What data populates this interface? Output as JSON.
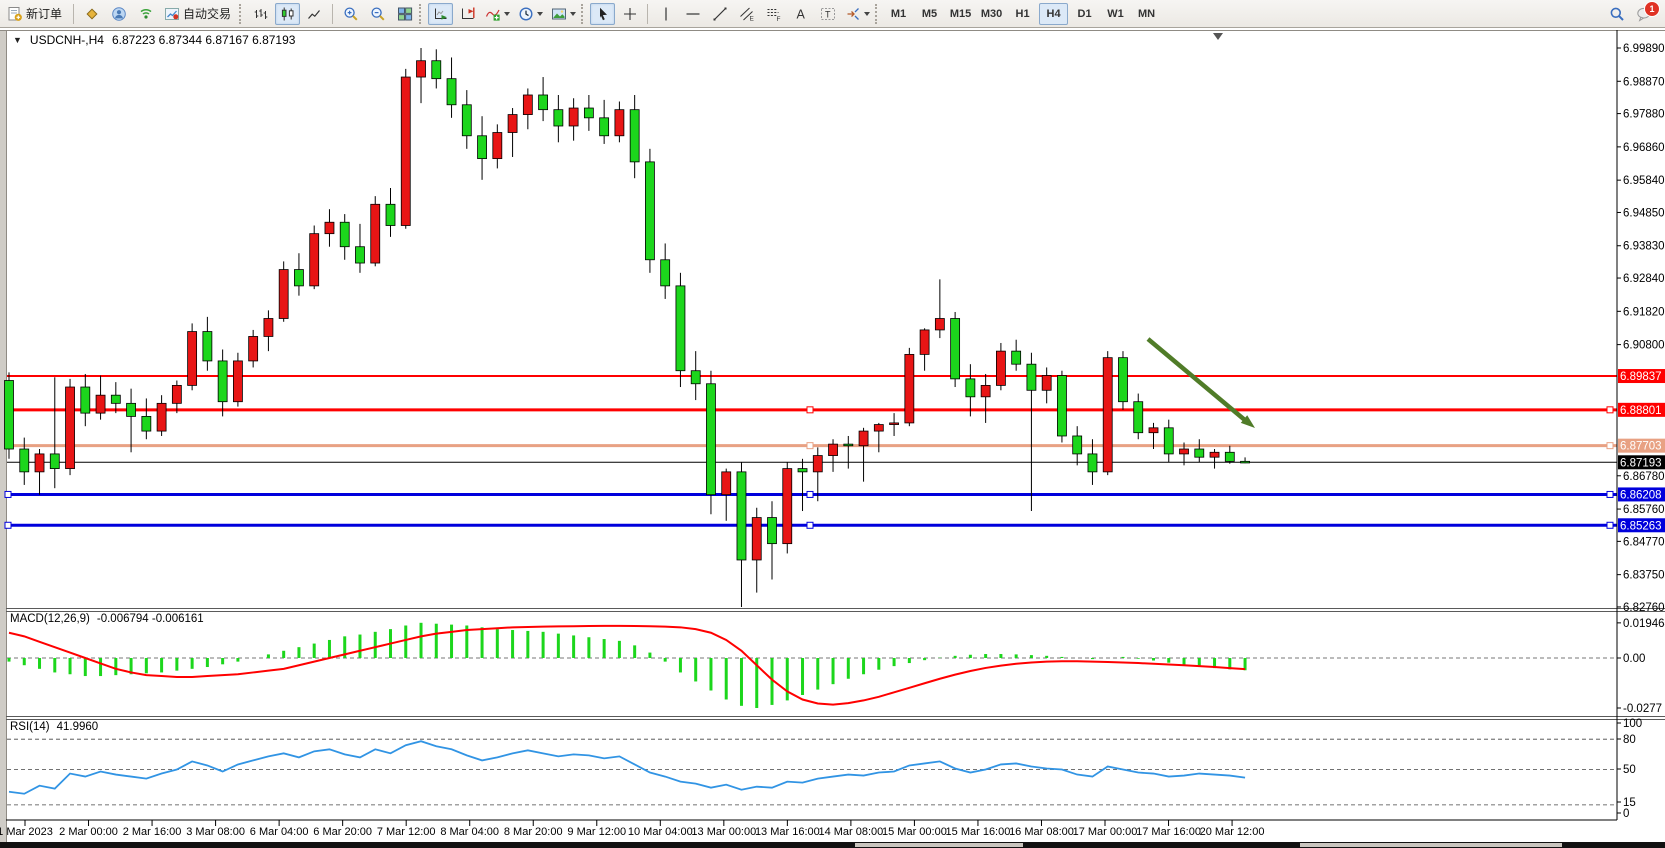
{
  "app": {
    "notification_count": "1"
  },
  "toolbar": {
    "new_order_label": "新订单",
    "auto_trading_label": "自动交易",
    "timeframes": [
      "M1",
      "M5",
      "M15",
      "M30",
      "H1",
      "H4",
      "D1",
      "W1",
      "MN"
    ],
    "active_timeframe": "H4"
  },
  "chart": {
    "collapse_icon": "▼",
    "title": "USDCNH-,H4",
    "ohlc": "6.87223 6.87344 6.87167 6.87193",
    "price_axis_ticks": [
      "6.99890",
      "6.98870",
      "6.97880",
      "6.96860",
      "6.95840",
      "6.94850",
      "6.93830",
      "6.92840",
      "6.91820",
      "6.90800",
      "6.86780",
      "6.85760",
      "6.84770",
      "6.83750",
      "6.82760"
    ],
    "levels": [
      {
        "label": "6.89837",
        "value": 6.89837,
        "color": "#FF0000",
        "width": 2,
        "handles": false
      },
      {
        "label": "6.88801",
        "value": 6.88801,
        "color": "#FF0000",
        "width": 3,
        "handles": true
      },
      {
        "label": "6.87703",
        "value": 6.87703,
        "color": "#E8A183",
        "width": 3,
        "handles": true
      },
      {
        "label": "6.87193",
        "value": 6.87193,
        "color": "#000000",
        "width": 1,
        "bid": true
      },
      {
        "label": "6.86208",
        "value": 6.86208,
        "color": "#0000DC",
        "width": 3,
        "handles": true
      },
      {
        "label": "6.85263",
        "value": 6.85263,
        "color": "#0000DC",
        "width": 3,
        "handles": true
      }
    ],
    "colors": {
      "bull": "#E81515",
      "bear": "#1CD61C",
      "wick": "#000000",
      "macd_hist": "#1CD61C",
      "macd_signal": "#FF0000",
      "rsi_line": "#3194E4",
      "arrow": "#507C28"
    }
  },
  "macd_panel": {
    "label": "MACD(12,26,9)",
    "values": "-0.006794 -0.006161",
    "axis": [
      "0.019464",
      "0.00",
      "-0.0277"
    ]
  },
  "rsi_panel": {
    "label": "RSI(14)",
    "value": "41.9960",
    "axis": [
      "100",
      "80",
      "50",
      "15",
      "0"
    ]
  },
  "chart_data": {
    "type": "candlestick",
    "symbol": "USDCNH-",
    "timeframe": "H4",
    "title": "USDCNH-,H4 6.87223 6.87344 6.87167 6.87193",
    "price_range": [
      6.8276,
      6.9989
    ],
    "up_color_note": "red = bullish, green = bearish (CN convention)",
    "time_labels": [
      "1 Mar 2023",
      "2 Mar 00:00",
      "2 Mar 16:00",
      "3 Mar 08:00",
      "6 Mar 04:00",
      "6 Mar 20:00",
      "7 Mar 12:00",
      "8 Mar 04:00",
      "8 Mar 20:00",
      "9 Mar 12:00",
      "10 Mar 04:00",
      "13 Mar 00:00",
      "13 Mar 16:00",
      "14 Mar 08:00",
      "15 Mar 00:00",
      "15 Mar 16:00",
      "16 Mar 08:00",
      "17 Mar 00:00",
      "17 Mar 16:00",
      "20 Mar 12:00"
    ],
    "candles": [
      [
        6.897,
        6.8995,
        6.873,
        6.876
      ],
      [
        6.876,
        6.8795,
        6.865,
        6.869
      ],
      [
        6.869,
        6.876,
        6.862,
        6.8745
      ],
      [
        6.8745,
        6.898,
        6.864,
        6.87
      ],
      [
        6.87,
        6.8975,
        6.868,
        6.895
      ],
      [
        6.895,
        6.899,
        6.883,
        6.887
      ],
      [
        6.887,
        6.8985,
        6.885,
        6.8925
      ],
      [
        6.8925,
        6.8965,
        6.887,
        6.89
      ],
      [
        6.89,
        6.8945,
        6.875,
        6.886
      ],
      [
        6.886,
        6.8915,
        6.879,
        6.8815
      ],
      [
        6.8815,
        6.8925,
        6.88,
        6.89
      ],
      [
        6.89,
        6.897,
        6.887,
        6.8955
      ],
      [
        6.8955,
        6.9145,
        6.894,
        6.912
      ],
      [
        6.912,
        6.9165,
        6.9,
        6.903
      ],
      [
        6.903,
        6.9065,
        6.886,
        6.8905
      ],
      [
        6.8905,
        6.9055,
        6.889,
        6.903
      ],
      [
        6.903,
        6.9125,
        6.901,
        6.9105
      ],
      [
        6.9105,
        6.9185,
        6.906,
        6.916
      ],
      [
        6.916,
        6.9335,
        6.915,
        6.931
      ],
      [
        6.931,
        6.936,
        6.923,
        6.926
      ],
      [
        6.926,
        6.9445,
        6.925,
        6.942
      ],
      [
        6.942,
        6.9495,
        6.938,
        6.9455
      ],
      [
        6.9455,
        6.948,
        6.934,
        6.938
      ],
      [
        6.938,
        6.945,
        6.93,
        6.933
      ],
      [
        6.933,
        6.9535,
        6.932,
        6.951
      ],
      [
        6.951,
        6.956,
        6.941,
        6.9445
      ],
      [
        6.9445,
        6.9925,
        6.9435,
        6.99
      ],
      [
        6.99,
        6.9989,
        6.982,
        6.995
      ],
      [
        6.995,
        6.9985,
        6.9865,
        6.9895
      ],
      [
        6.9895,
        6.996,
        6.9775,
        6.9815
      ],
      [
        6.9815,
        6.986,
        6.968,
        6.972
      ],
      [
        6.972,
        6.978,
        6.9585,
        6.965
      ],
      [
        6.965,
        6.9755,
        6.962,
        6.973
      ],
      [
        6.973,
        6.9805,
        6.9655,
        6.9785
      ],
      [
        6.9785,
        6.9865,
        6.974,
        6.9845
      ],
      [
        6.9845,
        6.99,
        6.9765,
        6.98
      ],
      [
        6.98,
        6.9845,
        6.97,
        6.975
      ],
      [
        6.975,
        6.9835,
        6.9705,
        6.9805
      ],
      [
        6.9805,
        6.9845,
        6.9735,
        6.9775
      ],
      [
        6.9775,
        6.983,
        6.9695,
        6.972
      ],
      [
        6.972,
        6.9825,
        6.97,
        6.98
      ],
      [
        6.98,
        6.9845,
        6.959,
        6.964
      ],
      [
        6.964,
        6.968,
        6.93,
        6.934
      ],
      [
        6.934,
        6.939,
        6.922,
        6.926
      ],
      [
        6.926,
        6.93,
        6.895,
        6.9
      ],
      [
        6.9,
        6.906,
        6.891,
        6.896
      ],
      [
        6.896,
        6.9,
        6.856,
        6.862
      ],
      [
        6.862,
        6.87,
        6.854,
        6.869
      ],
      [
        6.869,
        6.872,
        6.8276,
        6.842
      ],
      [
        6.842,
        6.858,
        6.832,
        6.855
      ],
      [
        6.855,
        6.86,
        6.836,
        6.847
      ],
      [
        6.847,
        6.872,
        6.844,
        6.87
      ],
      [
        6.87,
        6.873,
        6.857,
        6.869
      ],
      [
        6.869,
        6.8765,
        6.86,
        6.874
      ],
      [
        6.874,
        6.879,
        6.869,
        6.8775
      ],
      [
        6.8775,
        6.88,
        6.87,
        6.877
      ],
      [
        6.877,
        6.8825,
        6.866,
        6.8815
      ],
      [
        6.8815,
        6.884,
        6.875,
        6.8835
      ],
      [
        6.8835,
        6.887,
        6.88,
        6.884
      ],
      [
        6.884,
        6.907,
        6.883,
        6.905
      ],
      [
        6.905,
        6.913,
        6.9,
        6.9125
      ],
      [
        6.9125,
        6.928,
        6.91,
        6.916
      ],
      [
        6.916,
        6.918,
        6.895,
        6.8975
      ],
      [
        6.8975,
        6.902,
        6.886,
        6.892
      ],
      [
        6.892,
        6.899,
        6.884,
        6.8955
      ],
      [
        6.8955,
        6.9085,
        6.894,
        6.906
      ],
      [
        6.906,
        6.9095,
        6.9,
        6.902
      ],
      [
        6.902,
        6.9055,
        6.857,
        6.894
      ],
      [
        6.894,
        6.901,
        6.89,
        6.8985
      ],
      [
        6.8985,
        6.9,
        6.878,
        6.88
      ],
      [
        6.88,
        6.883,
        6.871,
        6.8745
      ],
      [
        6.8745,
        6.879,
        6.865,
        6.869
      ],
      [
        6.869,
        6.906,
        6.868,
        6.904
      ],
      [
        6.904,
        6.906,
        6.888,
        6.8905
      ],
      [
        6.8905,
        6.893,
        6.879,
        6.881
      ],
      [
        6.881,
        6.884,
        6.876,
        6.8825
      ],
      [
        6.8825,
        6.885,
        6.872,
        6.8745
      ],
      [
        6.8745,
        6.878,
        6.871,
        6.876
      ],
      [
        6.876,
        6.879,
        6.872,
        6.8735
      ],
      [
        6.8735,
        6.876,
        6.87,
        6.875
      ],
      [
        6.875,
        6.877,
        6.8715,
        6.8722
      ],
      [
        6.87223,
        6.87344,
        6.87167,
        6.87193
      ]
    ],
    "macd": {
      "type": "bar+line",
      "range": [
        -0.0277,
        0.019464
      ],
      "histogram": [
        -0.002,
        -0.004,
        -0.006,
        -0.008,
        -0.009,
        -0.01,
        -0.01,
        -0.0095,
        -0.009,
        -0.0085,
        -0.008,
        -0.007,
        -0.006,
        -0.005,
        -0.0035,
        -0.002,
        0.0,
        0.002,
        0.004,
        0.006,
        0.008,
        0.01,
        0.012,
        0.013,
        0.0145,
        0.016,
        0.018,
        0.0195,
        0.019,
        0.0185,
        0.018,
        0.017,
        0.016,
        0.0155,
        0.015,
        0.0145,
        0.0135,
        0.0125,
        0.0115,
        0.0105,
        0.0095,
        0.007,
        0.003,
        -0.002,
        -0.008,
        -0.013,
        -0.018,
        -0.023,
        -0.0265,
        -0.0277,
        -0.026,
        -0.0235,
        -0.0205,
        -0.0175,
        -0.0145,
        -0.0115,
        -0.009,
        -0.0065,
        -0.0045,
        -0.0028,
        -0.0012,
        0.0002,
        0.0012,
        0.0018,
        0.0022,
        0.0022,
        0.002,
        0.0016,
        0.0012,
        0.0006,
        0.0,
        -0.0006,
        0.0,
        0.0006,
        -0.0004,
        -0.0014,
        -0.0026,
        -0.0038,
        -0.0048,
        -0.0056,
        -0.0063,
        -0.006794
      ],
      "signal": [
        0.014,
        0.012,
        0.009,
        0.006,
        0.003,
        0.0,
        -0.003,
        -0.006,
        -0.008,
        -0.0095,
        -0.01,
        -0.0105,
        -0.0105,
        -0.01,
        -0.0095,
        -0.009,
        -0.008,
        -0.007,
        -0.006,
        -0.004,
        -0.002,
        0.0,
        0.002,
        0.004,
        0.006,
        0.008,
        0.01,
        0.012,
        0.0135,
        0.0145,
        0.0155,
        0.016,
        0.0165,
        0.017,
        0.0172,
        0.0174,
        0.0175,
        0.0176,
        0.0177,
        0.0178,
        0.0178,
        0.0177,
        0.0176,
        0.0174,
        0.017,
        0.016,
        0.014,
        0.01,
        0.004,
        -0.004,
        -0.012,
        -0.0185,
        -0.023,
        -0.0252,
        -0.0258,
        -0.025,
        -0.0235,
        -0.0215,
        -0.019,
        -0.0165,
        -0.014,
        -0.0115,
        -0.0092,
        -0.0072,
        -0.0055,
        -0.0042,
        -0.0032,
        -0.0025,
        -0.002,
        -0.0018,
        -0.0018,
        -0.002,
        -0.0022,
        -0.0025,
        -0.0028,
        -0.0032,
        -0.0036,
        -0.004,
        -0.0045,
        -0.005,
        -0.0056,
        -0.006161
      ]
    },
    "rsi": {
      "type": "line",
      "range": [
        0,
        100
      ],
      "levels": [
        80,
        50,
        15
      ],
      "values": [
        28,
        26,
        34,
        31,
        46,
        43,
        48,
        45,
        43,
        41,
        46,
        50,
        58,
        54,
        48,
        55,
        59,
        63,
        66,
        62,
        68,
        70,
        65,
        62,
        70,
        66,
        74,
        78,
        73,
        70,
        64,
        59,
        62,
        66,
        69,
        66,
        63,
        65,
        64,
        61,
        63,
        55,
        47,
        43,
        38,
        36,
        32,
        35,
        30,
        33,
        32,
        38,
        37,
        41,
        43,
        45,
        44,
        47,
        48,
        54,
        56,
        58,
        51,
        47,
        50,
        55,
        56,
        53,
        51,
        50,
        45,
        43,
        53,
        50,
        47,
        46,
        43,
        44,
        46,
        45,
        44,
        41.996
      ]
    },
    "annotations": [
      {
        "type": "arrow",
        "direction": "down-right",
        "color": "#507C28"
      }
    ]
  }
}
